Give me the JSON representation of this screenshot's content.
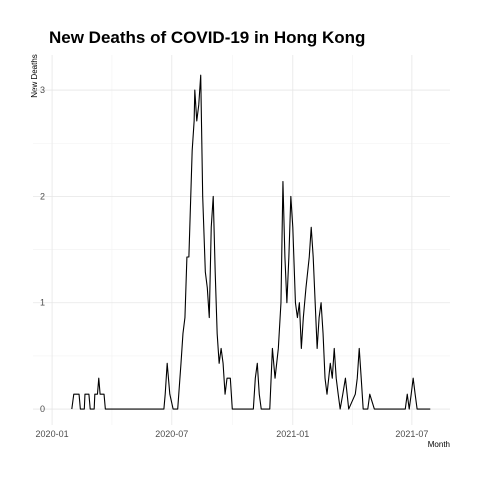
{
  "chart_data": {
    "type": "line",
    "title": "New Deaths of COVID-19 in Hong Kong",
    "x_label": "Month",
    "y_label": "New Deaths",
    "xlim": [
      -29,
      605
    ],
    "ylim": [
      -0.15,
      3.33
    ],
    "xticks": [
      {
        "value": 0,
        "label": "2020-01"
      },
      {
        "value": 182,
        "label": "2020-07"
      },
      {
        "value": 366,
        "label": "2021-01"
      },
      {
        "value": 547,
        "label": "2021-07"
      }
    ],
    "yticks": [
      0,
      1,
      2,
      3
    ],
    "grid": true,
    "x": [
      30,
      33,
      41,
      43,
      49,
      50,
      56,
      58,
      64,
      65,
      69,
      71,
      73,
      79,
      81,
      170,
      172,
      175,
      179,
      184,
      191,
      196,
      199,
      202,
      205,
      208,
      213,
      216,
      217,
      220,
      223,
      226,
      229,
      233,
      236,
      239,
      242,
      245,
      248,
      251,
      254,
      257,
      260,
      263,
      266,
      271,
      274,
      306,
      309,
      312,
      315,
      318,
      331,
      335,
      339,
      344,
      348,
      351,
      354,
      357,
      360,
      363,
      366,
      370,
      373,
      376,
      379,
      382,
      386,
      391,
      394,
      397,
      400,
      403,
      406,
      409,
      412,
      415,
      418,
      423,
      426,
      429,
      432,
      435,
      438,
      442,
      446,
      451,
      461,
      464,
      467,
      470,
      473,
      480,
      483,
      490,
      537,
      540,
      543,
      546,
      549,
      552,
      555,
      575
    ],
    "series": [
      {
        "name": "New Deaths",
        "color": "#000000",
        "values": [
          0,
          0.14,
          0.14,
          0,
          0,
          0.14,
          0.14,
          0,
          0,
          0.14,
          0.14,
          0.29,
          0.14,
          0.14,
          0,
          0,
          0.14,
          0.43,
          0.14,
          0,
          0,
          0.43,
          0.71,
          0.86,
          1.43,
          1.43,
          2.43,
          2.71,
          3.0,
          2.71,
          2.86,
          3.14,
          2.0,
          1.29,
          1.14,
          0.86,
          1.71,
          2.0,
          1.29,
          0.71,
          0.43,
          0.57,
          0.43,
          0.14,
          0.29,
          0.29,
          0,
          0,
          0.29,
          0.43,
          0.14,
          0,
          0,
          0.57,
          0.29,
          0.57,
          1.0,
          2.14,
          1.43,
          1.0,
          1.43,
          2.0,
          1.71,
          1.0,
          0.86,
          1.0,
          0.57,
          0.86,
          1.14,
          1.43,
          1.71,
          1.43,
          1.0,
          0.57,
          0.86,
          1.0,
          0.71,
          0.29,
          0.14,
          0.43,
          0.29,
          0.57,
          0.29,
          0.14,
          0,
          0.14,
          0.29,
          0,
          0.14,
          0.29,
          0.57,
          0.29,
          0,
          0,
          0.14,
          0,
          0,
          0.14,
          0,
          0.14,
          0.29,
          0.14,
          0,
          0
        ]
      }
    ]
  }
}
